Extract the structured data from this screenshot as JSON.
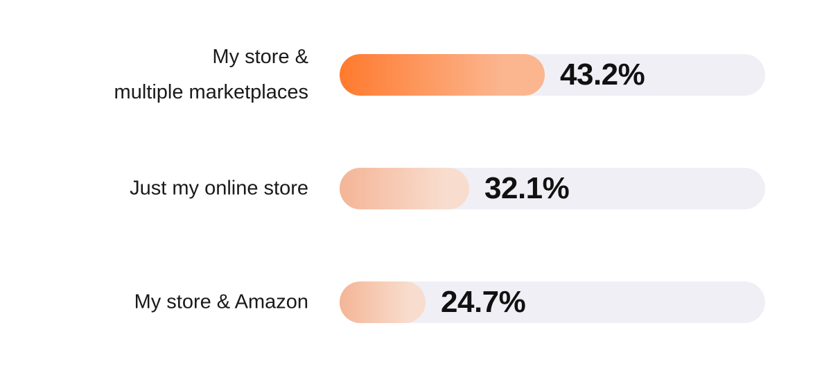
{
  "chart_data": {
    "type": "bar",
    "orientation": "horizontal",
    "categories": [
      "My store &\nmultiple marketplaces",
      "Just my online store",
      "My store & Amazon"
    ],
    "values": [
      43.2,
      32.1,
      24.7
    ],
    "value_labels": [
      "43.2%",
      "32.1%",
      "24.7%"
    ],
    "unit": "%",
    "title": "",
    "xlabel": "",
    "ylabel": "",
    "xlim": [
      0,
      100
    ],
    "grid": false,
    "legend": "none",
    "colors": {
      "highlight_start": "#ff7a2e",
      "highlight_end": "#fbb690",
      "bar_start": "#f4b596",
      "bar_end": "#f8dccd",
      "track": "#f0eff6",
      "text": "#111111"
    }
  }
}
